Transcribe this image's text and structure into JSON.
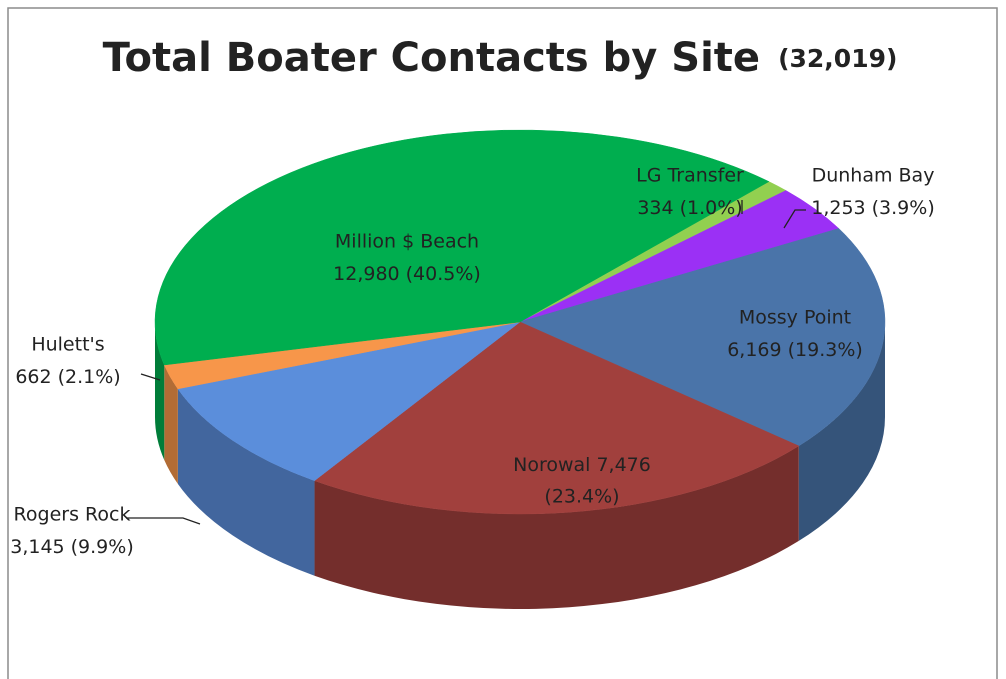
{
  "chart_data": {
    "type": "pie3d",
    "title": "Total Boater Contacts by Site",
    "total_label": "(32,019)",
    "categories": [
      "LG Transfer",
      "Dunham Bay",
      "Mossy Point",
      "Norowal",
      "Rogers Rock",
      "Hulett's",
      "Million $ Beach"
    ],
    "values": [
      334,
      1253,
      6169,
      7476,
      3145,
      662,
      12980
    ],
    "value_labels": [
      "334",
      "1,253",
      "6,169",
      "7,476",
      "3,145",
      "662",
      "12,980"
    ],
    "percentages": [
      1.0,
      3.9,
      19.3,
      23.4,
      9.9,
      2.1,
      40.5
    ],
    "percent_labels": [
      "(1.0%)",
      "(3.9%)",
      "(19.3%)",
      "(23.4%)",
      "(9.9%)",
      "(2.1%)",
      "(40.5%)"
    ],
    "colors": [
      "#92d050",
      "#9b30f5",
      "#4a74a9",
      "#a1403d",
      "#5b8edb",
      "#f7964a",
      "#00ae4f"
    ]
  }
}
